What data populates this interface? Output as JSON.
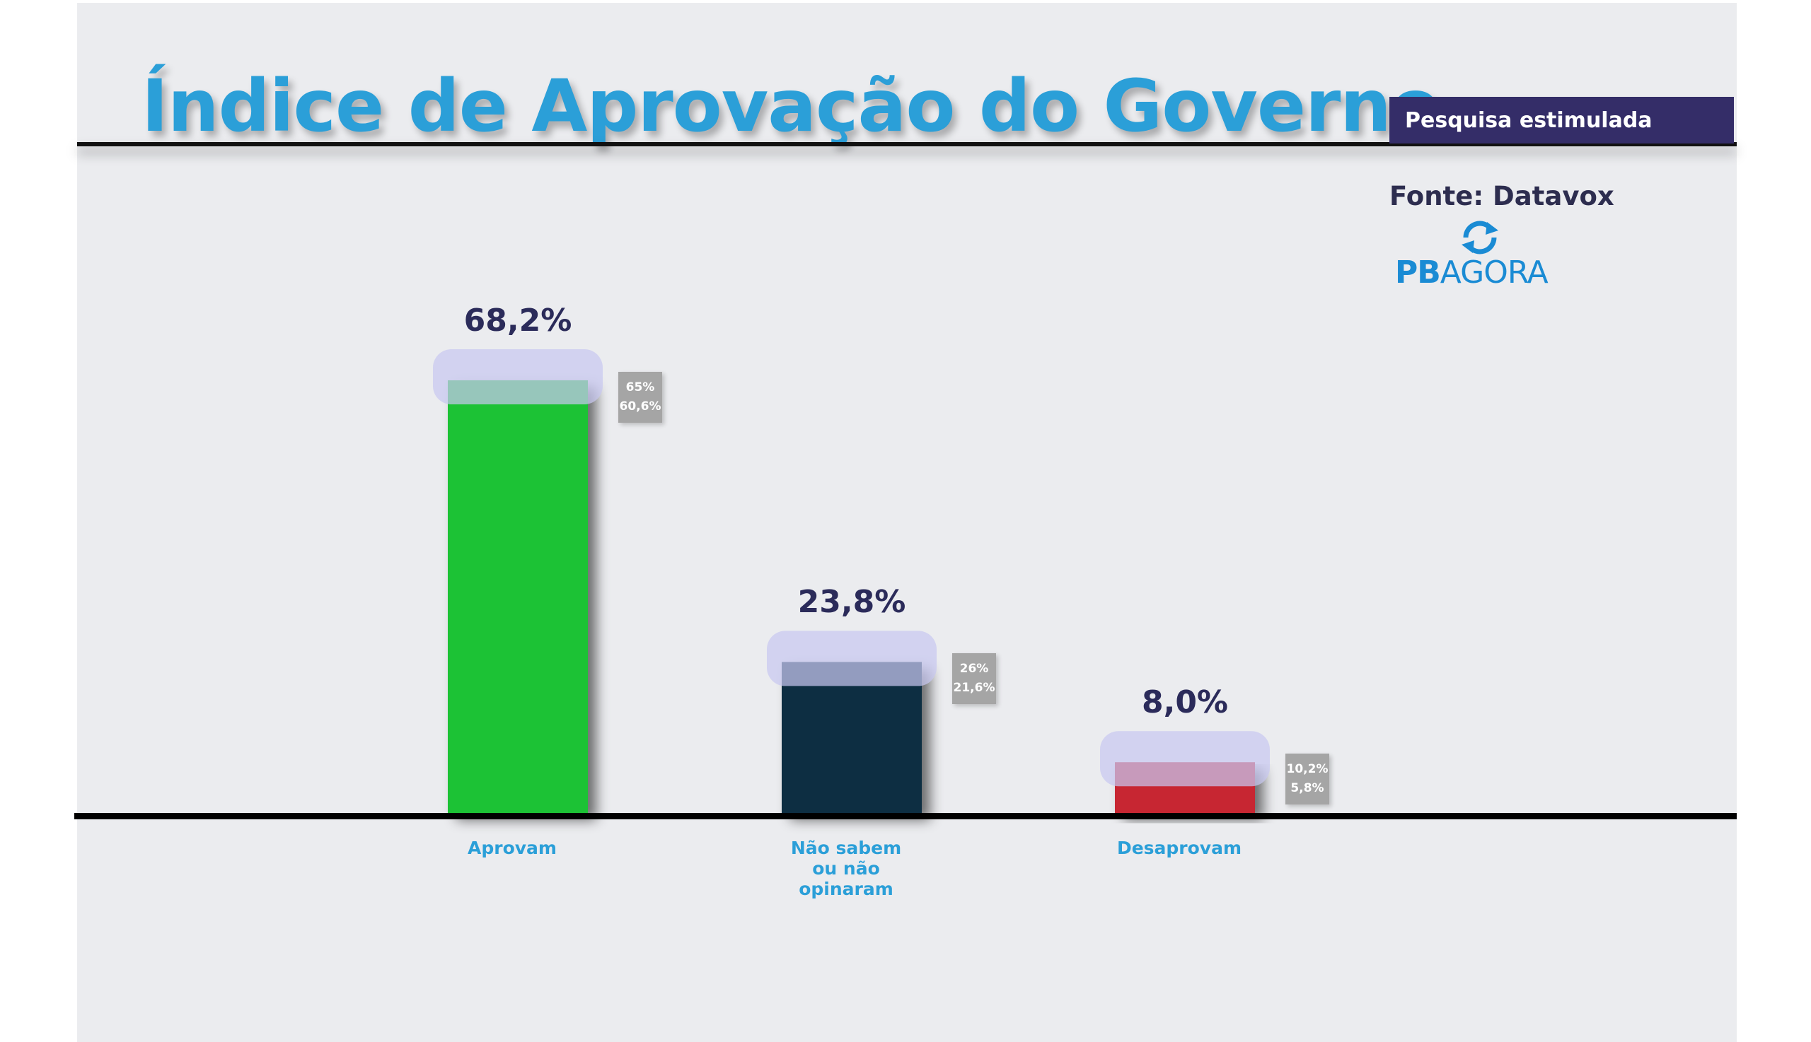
{
  "header": {
    "title": "Índice de Aprovação do Governo",
    "badge": "Pesquisa estimulada",
    "source": "Fonte: Datavox",
    "logo_bold": "PB",
    "logo_light": "AGORA"
  },
  "colors": {
    "title": "#2b9fd8",
    "badge_bg": "#342d68",
    "highlight": "#c8c8f0"
  },
  "chart_data": {
    "type": "bar",
    "categories": [
      "Aprovam",
      "Não sabem\nou não\nopinaram",
      "Desaprovam"
    ],
    "values": [
      68.2,
      23.8,
      8.0
    ],
    "value_labels": [
      "68,2%",
      "23,8%",
      "8,0%"
    ],
    "previous_values": [
      [
        "65%",
        "60,6%"
      ],
      [
        "26%",
        "21,6%"
      ],
      [
        "10,2%",
        "5,8%"
      ]
    ],
    "colors": [
      "#1cc236",
      "#082f42",
      "#c72531"
    ],
    "title": "Índice de Aprovação do Governo",
    "xlabel": "",
    "ylabel": "",
    "grid": false
  }
}
